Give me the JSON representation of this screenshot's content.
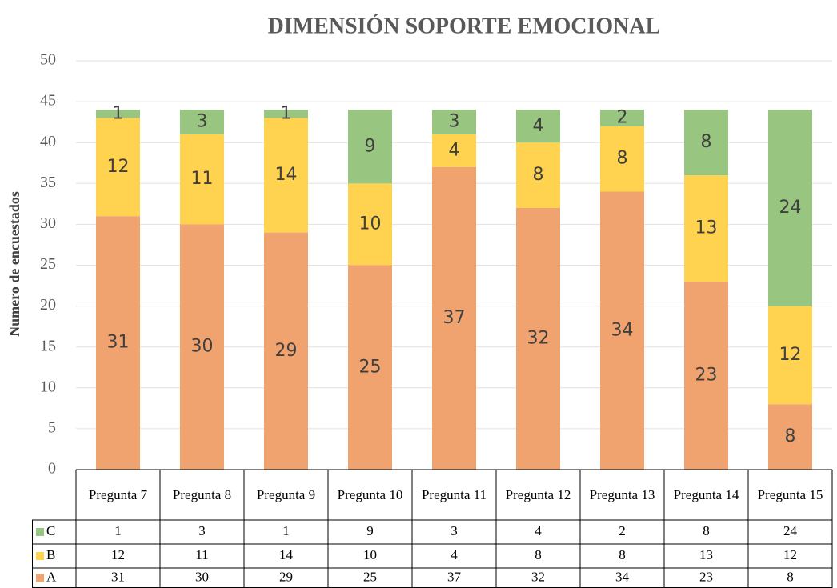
{
  "chart_data": {
    "type": "stacked_bar",
    "title": "DIMENSIÓN SOPORTE EMOCIONAL",
    "y_label": "Numero de encuestados",
    "categories": [
      "Pregunta 7",
      "Pregunta 8",
      "Pregunta 9",
      "Pregunta 10",
      "Pregunta 11",
      "Pregunta 12",
      "Pregunta 13",
      "Pregunta 14",
      "Pregunta 15"
    ],
    "series": [
      {
        "name": "A",
        "color": "#f0a36e",
        "values": [
          31,
          30,
          29,
          25,
          37,
          32,
          34,
          23,
          8
        ]
      },
      {
        "name": "B",
        "color": "#ffd24f",
        "values": [
          12,
          11,
          14,
          10,
          4,
          8,
          8,
          13,
          12
        ]
      },
      {
        "name": "C",
        "color": "#98c57f",
        "values": [
          1,
          3,
          1,
          9,
          3,
          4,
          2,
          8,
          24
        ]
      }
    ],
    "ylim": [
      0,
      50
    ],
    "yticks": [
      0,
      5,
      10,
      15,
      20,
      25,
      30,
      35,
      40,
      45,
      50
    ],
    "grid": true
  }
}
